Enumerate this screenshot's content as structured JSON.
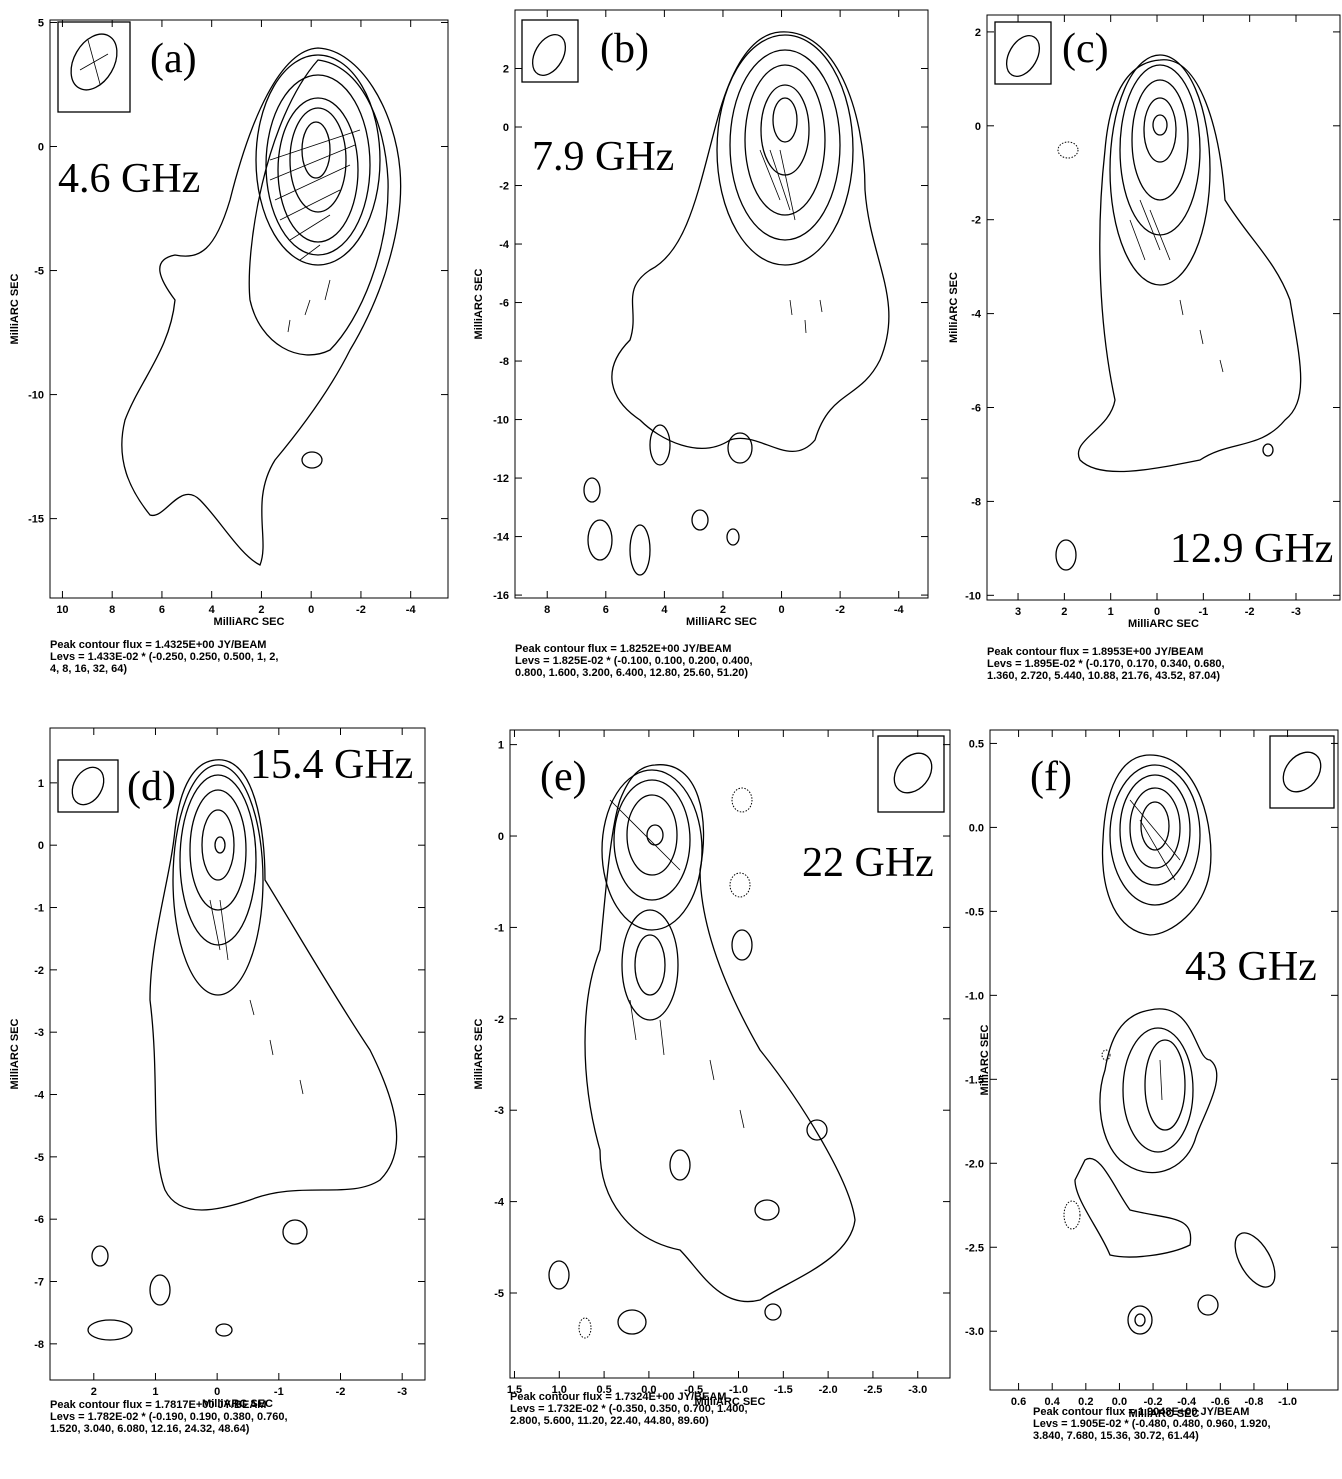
{
  "chart_data": [
    {
      "type": "contour",
      "label": "(a)",
      "frequency": "4.6 GHz",
      "xlabel": "MilliARC SEC",
      "ylabel": "MilliARC SEC",
      "xlim": [
        10.5,
        -5.5
      ],
      "ylim": [
        -18.2,
        5.1
      ],
      "xticks": [
        10,
        8,
        6,
        4,
        2,
        0,
        -2,
        -4
      ],
      "yticks": [
        5,
        0,
        -5,
        -10,
        -15
      ],
      "footer": [
        "Peak contour flux =  1.4325E+00 JY/BEAM",
        "Levs = 1.433E-02 * (-0.250, 0.250, 0.500, 1, 2,",
        "4, 8, 16, 32, 64)"
      ]
    },
    {
      "type": "contour",
      "label": "(b)",
      "frequency": "7.9 GHz",
      "xlabel": "MilliARC SEC",
      "ylabel": "MilliARC SEC",
      "xlim": [
        9.1,
        -5.0
      ],
      "ylim": [
        -16.1,
        4.0
      ],
      "xticks": [
        8,
        6,
        4,
        2,
        0,
        -2,
        -4
      ],
      "yticks": [
        2,
        0,
        -2,
        -4,
        -6,
        -8,
        -10,
        -12,
        -14,
        -16
      ],
      "footer": [
        "Peak contour flux =  1.8252E+00 JY/BEAM",
        "Levs = 1.825E-02 * (-0.100, 0.100, 0.200, 0.400,",
        "0.800, 1.600, 3.200, 6.400, 12.80, 25.60, 51.20)"
      ]
    },
    {
      "type": "contour",
      "label": "(c)",
      "frequency": "12.9 GHz",
      "xlabel": "MilliARC SEC",
      "ylabel": "MilliARC SEC",
      "xlim": [
        3.67,
        -3.95
      ],
      "ylim": [
        -10.1,
        2.36
      ],
      "xticks": [
        3,
        2,
        1,
        0,
        -1,
        -2,
        -3
      ],
      "yticks": [
        2,
        0,
        -2,
        -4,
        -6,
        -8,
        -10
      ],
      "footer": [
        "Peak contour flux =  1.8953E+00 JY/BEAM",
        "Levs = 1.895E-02 * (-0.170, 0.170, 0.340, 0.680,",
        "1.360, 2.720, 5.440, 10.88, 21.76, 43.52, 87.04)"
      ]
    },
    {
      "type": "contour",
      "label": "(d)",
      "frequency": "15.4 GHz",
      "xlabel": "MilliARC SEC",
      "ylabel": "MilliARC SEC",
      "xlim": [
        2.71,
        -3.37
      ],
      "ylim": [
        -8.58,
        1.88
      ],
      "xticks": [
        2,
        1,
        0,
        -1,
        -2,
        -3
      ],
      "yticks": [
        1,
        0,
        -1,
        -2,
        -3,
        -4,
        -5,
        -6,
        -7,
        -8
      ],
      "footer": [
        "Peak contour flux =  1.7817E+00 JY/BEAM",
        "Levs = 1.782E-02 * (-0.190, 0.190, 0.380, 0.760,",
        "1.520, 3.040, 6.080, 12.16, 24.32, 48.64)"
      ]
    },
    {
      "type": "contour",
      "label": "(e)",
      "frequency": "22 GHz",
      "xlabel": "MilliARC SEC",
      "ylabel": "MilliARC SEC",
      "xlim": [
        1.55,
        -3.36
      ],
      "ylim": [
        -5.93,
        1.16
      ],
      "xticks": [
        1.5,
        {
          "value": 1,
          "label": "1.0"
        },
        0.5,
        {
          "value": 0,
          "label": "0.0"
        },
        -0.5,
        {
          "value": -1,
          "label": "-1.0"
        },
        -1.5,
        {
          "value": -2,
          "label": "-2.0"
        },
        -2.5,
        {
          "value": -3,
          "label": "-3.0"
        }
      ],
      "yticks": [
        1,
        0,
        -1,
        -2,
        -3,
        -4,
        -5
      ],
      "footer": [
        "Peak contour flux =  1.7324E+00 JY/BEAM",
        "Levs = 1.732E-02 * (-0.350, 0.350, 0.700, 1.400,",
        "2.800, 5.600, 11.20, 22.40, 44.80, 89.60)"
      ]
    },
    {
      "type": "contour",
      "label": "(f)",
      "frequency": "43 GHz",
      "xlabel": "MilliARC SEC",
      "ylabel": "MilliARC SEC",
      "xlim": [
        0.77,
        -1.3
      ],
      "ylim": [
        -3.35,
        0.58
      ],
      "xticks": [
        0.6,
        0.4,
        0.2,
        {
          "value": 0,
          "label": "0.0"
        },
        -0.2,
        -0.4,
        -0.6,
        -0.8,
        {
          "value": -1,
          "label": "-1.0"
        }
      ],
      "yticks": [
        0.5,
        {
          "value": 0,
          "label": "0.0"
        },
        -0.5,
        {
          "value": -1,
          "label": "-1.0"
        },
        -1.5,
        {
          "value": -2,
          "label": "-2.0"
        },
        -2.5,
        {
          "value": -3,
          "label": "-3.0"
        }
      ],
      "footer": [
        "Peak contour flux =  1.9048E+00 JY/BEAM",
        "Levs = 1.905E-02 * (-0.480, 0.480, 0.960, 1.920,",
        "3.840, 7.680, 15.36, 30.72, 61.44)"
      ]
    }
  ]
}
